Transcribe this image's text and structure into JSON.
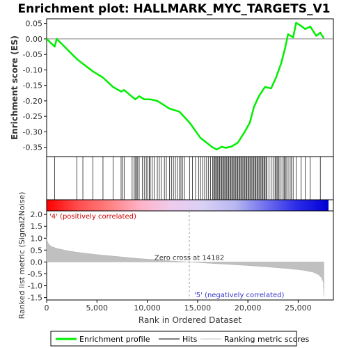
{
  "chart_data": {
    "type": "line",
    "title": "Enrichment plot: HALLMARK_MYC_TARGETS_V1",
    "es_panel": {
      "ylabel": "Enrichment score (ES)",
      "ylim": [
        -0.38,
        0.065
      ],
      "yticks": [
        0.05,
        0.0,
        -0.05,
        -0.1,
        -0.15,
        -0.2,
        -0.25,
        -0.3,
        -0.35
      ],
      "ytick_labels": [
        "0.05",
        "0.00",
        "-0.05",
        "-0.10",
        "-0.15",
        "-0.20",
        "-0.25",
        "-0.30",
        "-0.35"
      ],
      "series": [
        {
          "name": "Enrichment profile",
          "color": "#00ee00",
          "x": [
            0,
            800,
            1000,
            3000,
            3600,
            4600,
            5600,
            6600,
            7400,
            7700,
            8800,
            9200,
            9700,
            10300,
            11000,
            12200,
            13200,
            14200,
            15300,
            16500,
            16900,
            17400,
            17800,
            18400,
            19000,
            19600,
            20200,
            20600,
            21100,
            21700,
            22300,
            22800,
            23300,
            23700,
            24000,
            24500,
            24800,
            25300,
            25700,
            26200,
            26800,
            27200,
            27550
          ],
          "y": [
            0.0,
            -0.025,
            0.0,
            -0.065,
            -0.08,
            -0.105,
            -0.125,
            -0.155,
            -0.17,
            -0.165,
            -0.195,
            -0.185,
            -0.195,
            -0.195,
            -0.2,
            -0.225,
            -0.235,
            -0.27,
            -0.32,
            -0.35,
            -0.357,
            -0.348,
            -0.352,
            -0.347,
            -0.335,
            -0.305,
            -0.27,
            -0.22,
            -0.185,
            -0.155,
            -0.16,
            -0.125,
            -0.08,
            -0.03,
            0.015,
            0.005,
            0.052,
            0.042,
            0.032,
            0.04,
            0.01,
            0.02,
            0.002
          ]
        }
      ]
    },
    "hits_panel": {
      "hit_positions": [
        800,
        3000,
        3600,
        4600,
        5600,
        6600,
        7400,
        7550,
        7700,
        8500,
        8700,
        8800,
        8950,
        9050,
        9200,
        9500,
        9700,
        9900,
        10050,
        10200,
        10300,
        10500,
        10700,
        11000,
        11200,
        11400,
        11700,
        11900,
        12200,
        12400,
        12600,
        12800,
        13000,
        13200,
        13350,
        13500,
        13700,
        14200,
        14500,
        14800,
        15100,
        15300,
        15500,
        15700,
        15900,
        16100,
        16300,
        16500,
        16600,
        16700,
        16800,
        16900,
        17000,
        17100,
        17200,
        17300,
        17400,
        17500,
        17600,
        17700,
        17800,
        17900,
        18000,
        18100,
        18200,
        18300,
        18400,
        18500,
        18600,
        18700,
        18800,
        18900,
        19000,
        19100,
        19200,
        19300,
        19400,
        19500,
        19600,
        19700,
        19800,
        19900,
        20000,
        20100,
        20200,
        20300,
        20400,
        20500,
        20600,
        20700,
        20800,
        20900,
        21000,
        21100,
        21200,
        21300,
        21400,
        21500,
        21600,
        21700,
        21800,
        21900,
        22100,
        22300,
        22500,
        22700,
        22800,
        22900,
        23000,
        23100,
        23300,
        23500,
        23600,
        23700,
        23800,
        24000,
        24200,
        24300,
        24500,
        24800,
        25300,
        25700,
        26200,
        27200
      ]
    },
    "metric_panel": {
      "ylabel": "Ranked list metric (Signal2Noise)",
      "xlabel": "Rank in Ordered Dataset",
      "ylim": [
        -1.6,
        2.15
      ],
      "yticks": [
        2.0,
        1.5,
        1.0,
        0.5,
        0.0,
        -0.5,
        -1.0,
        -1.5
      ],
      "ytick_labels": [
        "2.0",
        "1.5",
        "1.0",
        "0.5",
        "0.0",
        "-0.5",
        "-1.0",
        "-1.5"
      ],
      "xlim": [
        0,
        28500
      ],
      "xticks": [
        0,
        5000,
        10000,
        15000,
        20000,
        25000
      ],
      "xtick_labels": [
        "0",
        "5,000",
        "10,000",
        "15,000",
        "20,000",
        "25,000"
      ],
      "fill_color": "#c0c0c0",
      "curve_x": [
        0,
        50,
        200,
        500,
        1000,
        2000,
        3000,
        5000,
        7000,
        9000,
        11000,
        12500,
        14182,
        16000,
        18000,
        20000,
        22000,
        24000,
        25500,
        26500,
        27000,
        27300,
        27500,
        27560
      ],
      "curve_y": [
        1.05,
        0.9,
        0.75,
        0.65,
        0.57,
        0.48,
        0.41,
        0.31,
        0.23,
        0.15,
        0.09,
        0.04,
        0.0,
        -0.05,
        -0.1,
        -0.15,
        -0.21,
        -0.28,
        -0.35,
        -0.43,
        -0.53,
        -0.65,
        -0.85,
        -1.45
      ],
      "zero_cross_label": "Zero cross at 14182",
      "zero_cross_rank": 14182,
      "pos_label": "'4' (positively correlated)",
      "neg_label": "'5' (negatively correlated)"
    },
    "legend": {
      "placement": "bottom",
      "items": [
        {
          "label": "Enrichment profile",
          "color": "#00ee00",
          "kind": "thick-line"
        },
        {
          "label": "Hits",
          "color": "#000000",
          "kind": "line"
        },
        {
          "label": "Ranking metric scores",
          "color": "#c0c0c0",
          "kind": "line"
        }
      ]
    },
    "heat_colors": [
      "#ff0000",
      "#ff4d4d",
      "#ff8080",
      "#ffb3c8",
      "#eeccee",
      "#d9d0f5",
      "#b8b8f0",
      "#6f6fee",
      "#2a2ae8",
      "#0000d6"
    ]
  }
}
